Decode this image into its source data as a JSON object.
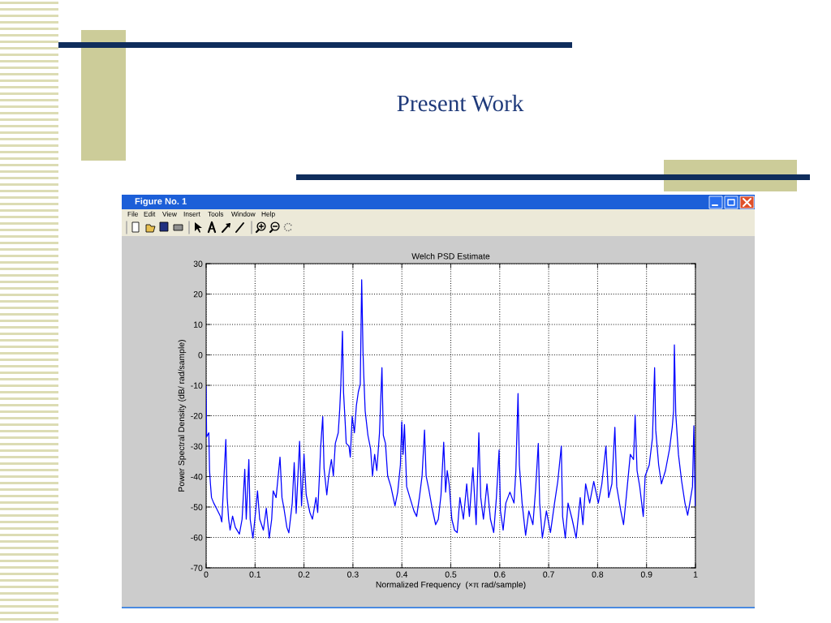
{
  "chart_data": {
    "type": "line",
    "title": "Welch PSD Estimate",
    "xlabel": "Normalized Frequency  (×π rad/sample)",
    "ylabel": "Power Spectral Density (dB/ rad/sample)",
    "annotations": [
      "Present Work",
      "Figure No. 1",
      "File",
      "Edit",
      "View",
      "Insert",
      "Tools",
      "Window",
      "Help"
    ],
    "x": [
      0,
      0.001,
      0.0055,
      0.007,
      0.0088,
      0.011,
      0.0155,
      0.021,
      0.029,
      0.032,
      0.0403,
      0.043,
      0.046,
      0.049,
      0.054,
      0.0597,
      0.068,
      0.0735,
      0.079,
      0.082,
      0.0873,
      0.09,
      0.0956,
      0.101,
      0.105,
      0.1095,
      0.117,
      0.123,
      0.129,
      0.134,
      0.137,
      0.143,
      0.151,
      0.155,
      0.159,
      0.165,
      0.169,
      0.176,
      0.18,
      0.184,
      0.191,
      0.195,
      0.2,
      0.2045,
      0.212,
      0.2173,
      0.2245,
      0.228,
      0.232,
      0.234,
      0.2383,
      0.241,
      0.2466,
      0.2505,
      0.256,
      0.26,
      0.264,
      0.27,
      0.2731,
      0.2753,
      0.2786,
      0.2808,
      0.2841,
      0.2863,
      0.292,
      0.2946,
      0.2985,
      0.303,
      0.307,
      0.311,
      0.315,
      0.3179,
      0.3206,
      0.3222,
      0.325,
      0.3306,
      0.3361,
      0.34,
      0.3444,
      0.3488,
      0.3543,
      0.3593,
      0.3621,
      0.3665,
      0.371,
      0.3776,
      0.386,
      0.3915,
      0.397,
      0.3998,
      0.4025,
      0.4053,
      0.4098,
      0.4164,
      0.4247,
      0.4302,
      0.4358,
      0.4413,
      0.4463,
      0.4496,
      0.4551,
      0.4618,
      0.469,
      0.4745,
      0.48,
      0.4855,
      0.4894,
      0.4927,
      0.4966,
      0.5021,
      0.5076,
      0.5131,
      0.5186,
      0.5258,
      0.5325,
      0.538,
      0.5452,
      0.5518,
      0.5573,
      0.5612,
      0.5667,
      0.5739,
      0.581,
      0.5877,
      0.5932,
      0.5987,
      0.6015,
      0.607,
      0.6125,
      0.6208,
      0.6291,
      0.633,
      0.6374,
      0.6401,
      0.6457,
      0.6529,
      0.6595,
      0.6678,
      0.6733,
      0.6788,
      0.6816,
      0.6871,
      0.6954,
      0.7037,
      0.712,
      0.7186,
      0.7258,
      0.7285,
      0.734,
      0.7396,
      0.7479,
      0.7562,
      0.7645,
      0.77,
      0.7755,
      0.7838,
      0.7921,
      0.8015,
      0.8087,
      0.817,
      0.8225,
      0.8292,
      0.8353,
      0.8391,
      0.8474,
      0.853,
      0.8585,
      0.8668,
      0.8734,
      0.8767,
      0.8806,
      0.8861,
      0.8933,
      0.8972,
      0.9055,
      0.9121,
      0.9165,
      0.9188,
      0.9248,
      0.9304,
      0.9387,
      0.947,
      0.9525,
      0.9553,
      0.9569,
      0.9597,
      0.9652,
      0.9718,
      0.9785,
      0.984,
      0.9884,
      0.9939,
      0.9967,
      0.9995,
      1
    ],
    "series": [
      {
        "color": "#0000ff",
        "values": [
          -10.4,
          -26.9,
          -25.6,
          -38,
          -42.4,
          -46.9,
          -48.7,
          -50.4,
          -53,
          -54.9,
          -27.8,
          -46.9,
          -54,
          -57.6,
          -53,
          -56.7,
          -58.9,
          -54,
          -37.6,
          -54,
          -34.4,
          -54,
          -60.2,
          -51.8,
          -44.7,
          -54,
          -57.6,
          -50.4,
          -60.2,
          -54,
          -44.7,
          -46.9,
          -33.6,
          -46.9,
          -50.4,
          -56.7,
          -58.5,
          -48.7,
          -35.4,
          -52.1,
          -28.4,
          -49.6,
          -32.7,
          -46,
          -51.8,
          -54,
          -46.9,
          -51.8,
          -38.2,
          -30.4,
          -20.3,
          -37.3,
          -46,
          -39.8,
          -34.4,
          -39.8,
          -29.1,
          -25.6,
          -17.6,
          -9.6,
          7.8,
          -12.2,
          -22,
          -29.1,
          -30,
          -33.6,
          -20.2,
          -25.6,
          -16.7,
          -12.2,
          -9.6,
          24.7,
          1,
          -6.9,
          -18.4,
          -26.4,
          -30.9,
          -39.8,
          -32.7,
          -38,
          -25.6,
          -4.2,
          -26.4,
          -29.1,
          -39.8,
          -43.3,
          -49.6,
          -45.1,
          -36.2,
          -22,
          -32.7,
          -22.9,
          -43.3,
          -46.9,
          -51.3,
          -53.1,
          -46.9,
          -39.8,
          -24.7,
          -39.8,
          -44.2,
          -50.4,
          -55.8,
          -54,
          -46,
          -28.7,
          -45.1,
          -38,
          -42.4,
          -54,
          -57.6,
          -58.4,
          -46.9,
          -54,
          -42.4,
          -53.1,
          -37.1,
          -55.8,
          -25.6,
          -46.9,
          -54,
          -42.4,
          -54,
          -58.4,
          -46.9,
          -31.3,
          -51.3,
          -57.6,
          -48.7,
          -45.1,
          -48.7,
          -38,
          -12.7,
          -36.2,
          -48.7,
          -59.3,
          -51.3,
          -55.8,
          -44.2,
          -29.1,
          -48.7,
          -60.2,
          -51.3,
          -58.4,
          -48.7,
          -41.6,
          -30,
          -53.1,
          -60.2,
          -48.7,
          -54,
          -60.2,
          -46.9,
          -55.8,
          -42.4,
          -48.7,
          -41.6,
          -48.7,
          -42.4,
          -30,
          -46.9,
          -42.4,
          -23.8,
          -43.3,
          -51.3,
          -55.8,
          -46.9,
          -32.7,
          -34.4,
          -19.8,
          -38,
          -43.3,
          -53.1,
          -39.8,
          -36.2,
          -27.3,
          -4.2,
          -24.7,
          -36.2,
          -42.4,
          -38,
          -30.9,
          -23.8,
          -18.4,
          3.3,
          -19.3,
          -32.7,
          -41.6,
          -48.7,
          -52.7,
          -48.7,
          -43.3,
          -23.3,
          -49.6,
          -40
        ]
      }
    ],
    "xlim": [
      0,
      1
    ],
    "ylim": [
      -70,
      30
    ],
    "xticks": [
      0,
      0.1,
      0.2,
      0.3,
      0.4,
      0.5,
      0.6,
      0.7,
      0.8,
      0.9,
      1
    ],
    "yticks": [
      -70,
      -60,
      -50,
      -40,
      -30,
      -20,
      -10,
      0,
      10,
      20,
      30
    ],
    "grid": true
  }
}
